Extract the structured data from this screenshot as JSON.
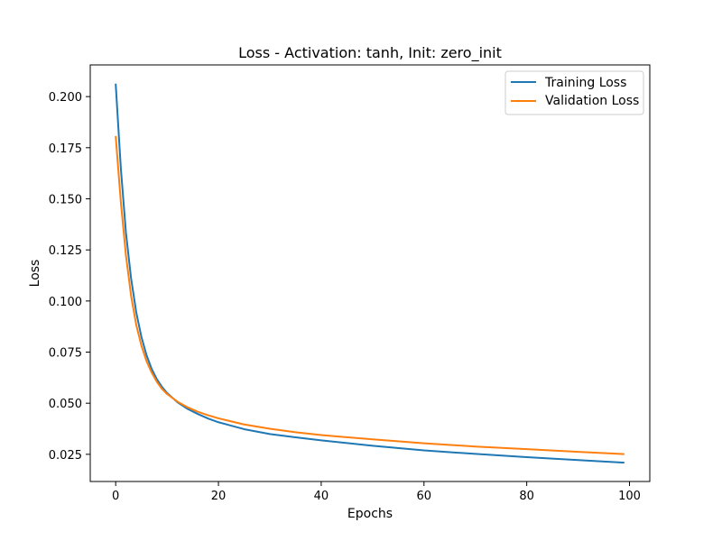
{
  "chart_data": {
    "type": "line",
    "title": "Loss - Activation: tanh, Init: zero_init",
    "xlabel": "Epochs",
    "ylabel": "Loss",
    "xlim": [
      -4.95,
      103.95
    ],
    "ylim": [
      0.0117,
      0.2155
    ],
    "xticks": [
      0,
      20,
      40,
      60,
      80,
      100
    ],
    "xtick_labels": [
      "0",
      "20",
      "40",
      "60",
      "80",
      "100"
    ],
    "yticks": [
      0.025,
      0.05,
      0.075,
      0.1,
      0.125,
      0.15,
      0.175,
      0.2
    ],
    "ytick_labels": [
      "0.025",
      "0.050",
      "0.075",
      "0.100",
      "0.125",
      "0.150",
      "0.175",
      "0.200"
    ],
    "grid": false,
    "legend_position": "upper right",
    "x": [
      0,
      1,
      2,
      3,
      4,
      5,
      6,
      7,
      8,
      9,
      10,
      12,
      14,
      16,
      18,
      20,
      25,
      30,
      35,
      40,
      50,
      60,
      70,
      80,
      90,
      99
    ],
    "series": [
      {
        "name": "Training Loss",
        "color": "#1f77b4",
        "values": [
          0.2063,
          0.165,
          0.1333,
          0.111,
          0.0945,
          0.0825,
          0.0735,
          0.0668,
          0.0618,
          0.058,
          0.055,
          0.0505,
          0.0472,
          0.0447,
          0.0425,
          0.0407,
          0.0373,
          0.0349,
          0.0333,
          0.0318,
          0.0292,
          0.0269,
          0.0252,
          0.0236,
          0.0222,
          0.0209
        ]
      },
      {
        "name": "Validation Loss",
        "color": "#ff7f0e",
        "values": [
          0.1807,
          0.1485,
          0.1222,
          0.1025,
          0.0883,
          0.0782,
          0.0706,
          0.065,
          0.0605,
          0.057,
          0.0545,
          0.0508,
          0.048,
          0.0458,
          0.0441,
          0.0426,
          0.0396,
          0.0375,
          0.0358,
          0.0344,
          0.0323,
          0.0304,
          0.0288,
          0.0275,
          0.0262,
          0.0251
        ]
      }
    ]
  }
}
